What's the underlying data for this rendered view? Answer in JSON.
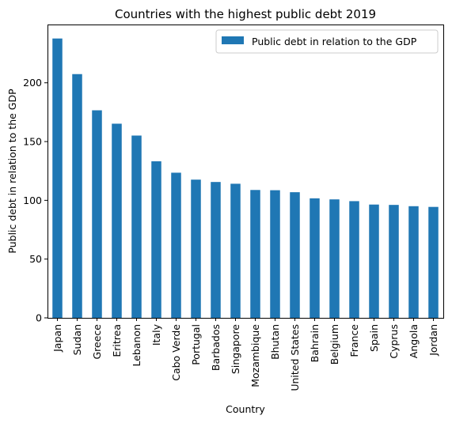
{
  "chart_data": {
    "type": "bar",
    "title": "Countries with the highest public debt 2019",
    "xlabel": "Country",
    "ylabel": "Public debt in relation to the GDP",
    "ylim": [
      0,
      249.6
    ],
    "yticks": [
      0,
      50,
      100,
      150,
      200
    ],
    "grid": false,
    "legend_position": "top-right",
    "categories": [
      "Japan",
      "Sudan",
      "Greece",
      "Eritrea",
      "Lebanon",
      "Italy",
      "Cabo Verde",
      "Portugal",
      "Barbados",
      "Singapore",
      "Mozambique",
      "Bhutan",
      "United States",
      "Bahrain",
      "Belgium",
      "France",
      "Spain",
      "Cyprus",
      "Angola",
      "Jordan"
    ],
    "series": [
      {
        "name": "Public debt in relation to the GDP",
        "color": "#1f77b4",
        "values": [
          237.7,
          207.4,
          176.6,
          165.2,
          155.1,
          133.2,
          123.5,
          117.6,
          115.6,
          114.1,
          108.8,
          108.6,
          106.9,
          101.7,
          100.8,
          99.3,
          96.4,
          96.1,
          95.0,
          94.4
        ]
      }
    ]
  }
}
